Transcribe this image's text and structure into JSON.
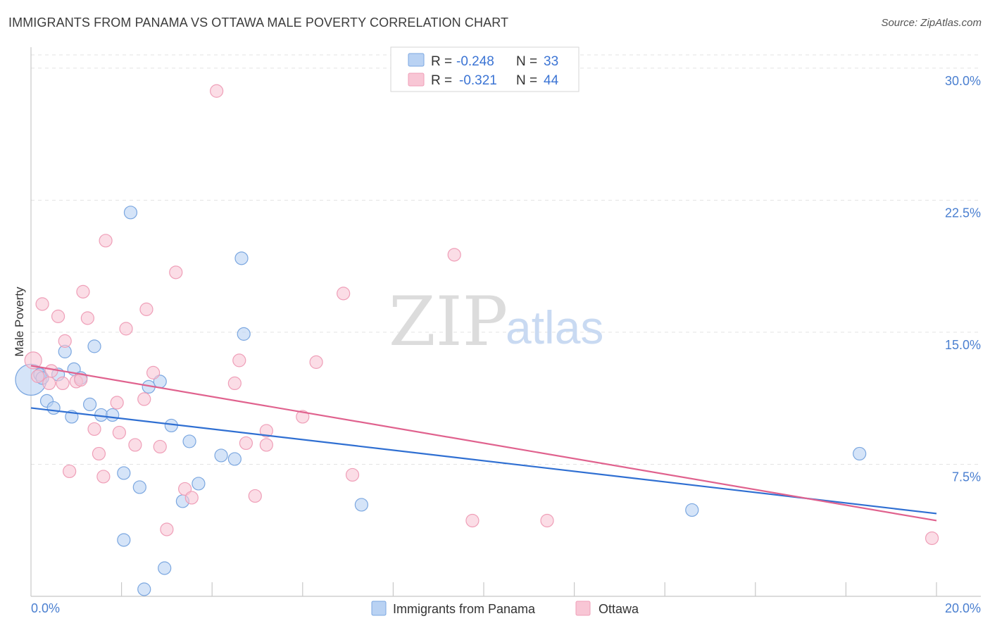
{
  "header": {
    "title": "IMMIGRANTS FROM PANAMA VS OTTAWA MALE POVERTY CORRELATION CHART",
    "source": "Source: ZipAtlas.com"
  },
  "watermark": {
    "zip": "ZIP",
    "atlas": "atlas"
  },
  "legend": {
    "rows": [
      {
        "r_label": "R =",
        "r_value": "-0.248",
        "n_label": "N =",
        "n_value": "33"
      },
      {
        "r_label": "R =",
        "r_value": "-0.321",
        "n_label": "N =",
        "n_value": "44"
      }
    ]
  },
  "bottom_legend": [
    "Immigrants from Panama",
    "Ottawa"
  ],
  "colors": {
    "blue_fill": "#b9d2f3",
    "blue_stroke": "#7ba7e0",
    "blue_line": "#2f6fd2",
    "pink_fill": "#f8c6d5",
    "pink_stroke": "#ef9fb8",
    "pink_line": "#e0628e",
    "grid": "#e3e3e3",
    "tick_label": "#4a7fd0"
  },
  "chart_data": {
    "type": "scatter",
    "title": "IMMIGRANTS FROM PANAMA VS OTTAWA MALE POVERTY CORRELATION CHART",
    "xlabel": "",
    "ylabel": "Male Poverty",
    "xlim": [
      0,
      20
    ],
    "ylim": [
      0,
      30.75
    ],
    "x_tick_labels": [
      "0.0%",
      "20.0%"
    ],
    "y_ticks": [
      7.5,
      15.0,
      22.5,
      30.0
    ],
    "y_tick_labels": [
      "7.5%",
      "15.0%",
      "22.5%",
      "30.0%"
    ],
    "grid": true,
    "legend_position": "top-center",
    "series": [
      {
        "name": "Immigrants from Panama",
        "r": -0.248,
        "n": 33,
        "trend": [
          [
            0,
            10.7
          ],
          [
            20,
            4.7
          ]
        ],
        "points": [
          [
            0.0,
            12.3,
            22
          ],
          [
            0.2,
            12.6,
            9
          ],
          [
            0.35,
            11.1,
            9
          ],
          [
            0.5,
            10.7,
            9
          ],
          [
            0.6,
            12.6,
            9
          ],
          [
            0.75,
            13.9,
            9
          ],
          [
            0.9,
            10.2,
            9
          ],
          [
            0.95,
            12.9,
            9
          ],
          [
            1.1,
            12.4,
            9
          ],
          [
            1.3,
            10.9,
            9
          ],
          [
            1.4,
            14.2,
            9
          ],
          [
            1.55,
            10.3,
            9
          ],
          [
            1.8,
            10.3,
            9
          ],
          [
            2.05,
            3.2,
            9
          ],
          [
            2.05,
            7.0,
            9
          ],
          [
            2.2,
            21.8,
            9
          ],
          [
            2.4,
            6.2,
            9
          ],
          [
            2.5,
            0.4,
            9
          ],
          [
            2.6,
            11.9,
            9
          ],
          [
            2.85,
            12.2,
            9
          ],
          [
            2.95,
            1.6,
            9
          ],
          [
            3.1,
            9.7,
            9
          ],
          [
            3.35,
            5.4,
            9
          ],
          [
            3.5,
            8.8,
            9
          ],
          [
            3.7,
            6.4,
            9
          ],
          [
            4.2,
            8.0,
            9
          ],
          [
            4.5,
            7.8,
            9
          ],
          [
            4.7,
            14.9,
            9
          ],
          [
            4.65,
            19.2,
            9
          ],
          [
            7.3,
            5.2,
            9
          ],
          [
            14.6,
            4.9,
            9
          ],
          [
            18.3,
            8.1,
            9
          ],
          [
            0.25,
            12.4,
            9
          ]
        ]
      },
      {
        "name": "Ottawa",
        "r": -0.321,
        "n": 44,
        "trend": [
          [
            0,
            13.1
          ],
          [
            20,
            4.3
          ]
        ],
        "points": [
          [
            0.05,
            13.4,
            12
          ],
          [
            0.15,
            12.5,
            9
          ],
          [
            0.25,
            16.6,
            9
          ],
          [
            0.4,
            12.1,
            9
          ],
          [
            0.45,
            12.8,
            9
          ],
          [
            0.6,
            15.9,
            9
          ],
          [
            0.7,
            12.1,
            9
          ],
          [
            0.75,
            14.5,
            9
          ],
          [
            0.85,
            7.1,
            9
          ],
          [
            1.0,
            12.2,
            9
          ],
          [
            1.1,
            12.3,
            9
          ],
          [
            1.15,
            17.3,
            9
          ],
          [
            1.25,
            15.8,
            9
          ],
          [
            1.4,
            9.5,
            9
          ],
          [
            1.5,
            8.1,
            9
          ],
          [
            1.6,
            6.8,
            9
          ],
          [
            1.65,
            20.2,
            9
          ],
          [
            1.9,
            11.0,
            9
          ],
          [
            1.95,
            9.3,
            9
          ],
          [
            2.1,
            15.2,
            9
          ],
          [
            2.3,
            8.6,
            9
          ],
          [
            2.5,
            11.2,
            9
          ],
          [
            2.55,
            16.3,
            9
          ],
          [
            2.7,
            12.7,
            9
          ],
          [
            2.85,
            8.5,
            9
          ],
          [
            3.0,
            3.8,
            9
          ],
          [
            3.2,
            18.4,
            9
          ],
          [
            3.4,
            6.1,
            9
          ],
          [
            3.55,
            5.6,
            9
          ],
          [
            4.1,
            28.7,
            9
          ],
          [
            4.5,
            12.1,
            9
          ],
          [
            4.6,
            13.4,
            9
          ],
          [
            4.75,
            8.7,
            9
          ],
          [
            4.95,
            5.7,
            9
          ],
          [
            5.2,
            9.4,
            9
          ],
          [
            5.2,
            8.6,
            9
          ],
          [
            6.0,
            10.2,
            9
          ],
          [
            6.3,
            13.3,
            9
          ],
          [
            6.9,
            17.2,
            9
          ],
          [
            7.1,
            6.9,
            9
          ],
          [
            9.35,
            19.4,
            9
          ],
          [
            9.75,
            4.3,
            9
          ],
          [
            11.4,
            4.3,
            9
          ],
          [
            19.9,
            3.3,
            9
          ]
        ]
      }
    ]
  }
}
